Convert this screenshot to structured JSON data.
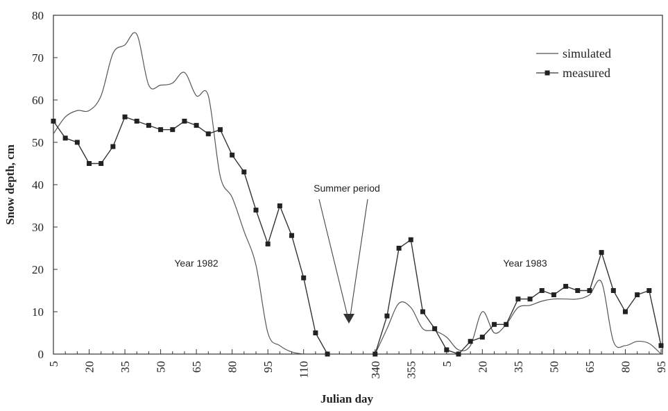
{
  "chart_data": {
    "type": "line",
    "x_label": "Julian day",
    "y_label": "Snow depth, cm",
    "categories": [
      "5",
      null,
      null,
      "20",
      null,
      null,
      "35",
      null,
      null,
      "50",
      null,
      null,
      "65",
      null,
      null,
      "80",
      null,
      null,
      "95",
      null,
      null,
      "110",
      null,
      null,
      null,
      null,
      null,
      "340",
      null,
      null,
      "355",
      null,
      null,
      "5",
      null,
      null,
      "20",
      null,
      null,
      "35",
      null,
      null,
      "50",
      null,
      null,
      "65",
      null,
      null,
      "80",
      null,
      null,
      "95"
    ],
    "series": [
      {
        "name": "simulated",
        "color": "#555555",
        "smooth": true,
        "marker": false,
        "values": [
          52,
          56,
          57.5,
          57.5,
          61,
          71,
          73,
          75.5,
          63.5,
          63.5,
          64,
          66.5,
          61,
          61,
          42,
          37,
          29,
          21,
          5,
          2,
          0.5,
          0,
          null,
          null,
          null,
          null,
          null,
          0,
          6,
          12,
          11,
          6,
          5.5,
          4,
          1,
          2,
          10,
          5,
          7,
          11,
          11.5,
          12.5,
          13,
          13,
          13,
          14,
          17,
          3,
          2,
          3,
          2.5,
          0
        ]
      },
      {
        "name": "measured",
        "color": "#333333",
        "smooth": false,
        "marker": true,
        "values": [
          55,
          51,
          50,
          45,
          45,
          49,
          56,
          55,
          54,
          53,
          53,
          55,
          54,
          52,
          53,
          47,
          43,
          34,
          26,
          35,
          28,
          18,
          5,
          0,
          null,
          null,
          null,
          0,
          9,
          25,
          27,
          10,
          6,
          1,
          0,
          3,
          4,
          7,
          7,
          13,
          13,
          15,
          14,
          16,
          15,
          15,
          24,
          15,
          10,
          14,
          15,
          2
        ]
      }
    ],
    "ylim": [
      0,
      80
    ],
    "yticks": [
      0,
      10,
      20,
      30,
      40,
      50,
      60,
      70,
      80
    ],
    "annotations": [
      "Summer period",
      "Year 1982",
      "Year 1983"
    ],
    "legend": "top-right"
  }
}
